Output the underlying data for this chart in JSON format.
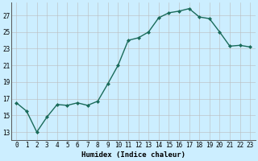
{
  "x": [
    0,
    1,
    2,
    3,
    4,
    5,
    6,
    7,
    8,
    9,
    10,
    11,
    12,
    13,
    14,
    15,
    16,
    17,
    18,
    19,
    20,
    21,
    22,
    23
  ],
  "y": [
    16.5,
    15.5,
    13.0,
    14.8,
    16.3,
    16.2,
    16.5,
    16.2,
    16.7,
    18.8,
    21.0,
    24.0,
    24.3,
    25.0,
    26.7,
    27.3,
    27.5,
    27.8,
    26.8,
    26.6,
    25.0,
    23.3,
    23.4,
    23.2
  ],
  "line_color": "#1a6b5a",
  "marker": "D",
  "marker_size": 2.0,
  "bg_color": "#cceeff",
  "grid_color": "#bbbbbb",
  "xlabel": "Humidex (Indice chaleur)",
  "xlim": [
    -0.5,
    23.5
  ],
  "ylim": [
    12,
    28.5
  ],
  "yticks": [
    13,
    15,
    17,
    19,
    21,
    23,
    25,
    27
  ],
  "xticks": [
    0,
    1,
    2,
    3,
    4,
    5,
    6,
    7,
    8,
    9,
    10,
    11,
    12,
    13,
    14,
    15,
    16,
    17,
    18,
    19,
    20,
    21,
    22,
    23
  ],
  "xlabel_fontsize": 6.5,
  "tick_fontsize": 5.5,
  "linewidth": 1.0
}
